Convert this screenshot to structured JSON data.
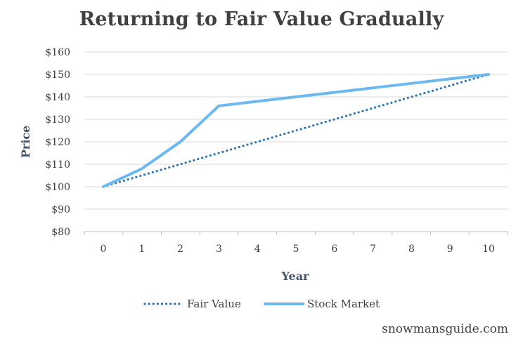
{
  "chart_data": {
    "type": "line",
    "title": "Returning to Fair Value Gradually",
    "xlabel": "Year",
    "ylabel": "Price",
    "x": [
      0,
      1,
      2,
      3,
      4,
      5,
      6,
      7,
      8,
      9,
      10
    ],
    "y_ticks": [
      "$80",
      "$90",
      "$100",
      "$110",
      "$120",
      "$130",
      "$140",
      "$150",
      "$160"
    ],
    "ylim": [
      80,
      160
    ],
    "grid": true,
    "legend_position": "bottom",
    "series": [
      {
        "name": "Fair Value",
        "style": "dotted",
        "color": "#2e75b6",
        "values": [
          100,
          105,
          110,
          115,
          120,
          125,
          130,
          135,
          140,
          145,
          150
        ]
      },
      {
        "name": "Stock Market",
        "style": "solid",
        "color": "#6cb8f0",
        "values": [
          100,
          108,
          120,
          136,
          138,
          140,
          142,
          144,
          146,
          148,
          150
        ]
      }
    ]
  },
  "watermark": "snowmansguide.com"
}
